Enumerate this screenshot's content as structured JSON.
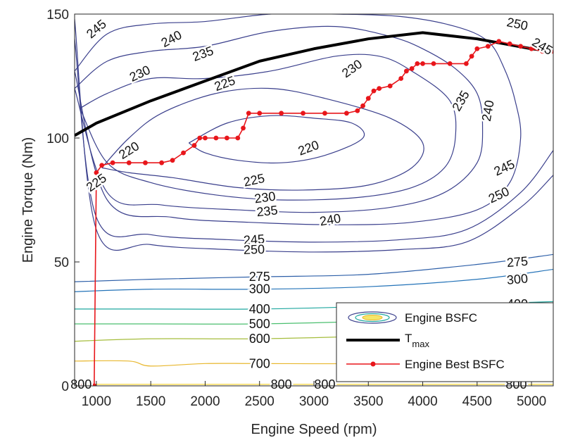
{
  "chart_data": {
    "type": "line",
    "title": "",
    "xlabel": "Engine Speed (rpm)",
    "ylabel": "Engine Torque (Nm)",
    "xlim": [
      800,
      5200
    ],
    "ylim": [
      0,
      150
    ],
    "xticks": [
      1000,
      1500,
      2000,
      2500,
      3000,
      3500,
      4000,
      4500,
      5000
    ],
    "yticks": [
      0,
      50,
      100,
      150
    ],
    "legend": {
      "placement": "bottom-right",
      "entries": [
        "Engine BSFC",
        "T",
        "Engine Best BSFC"
      ],
      "tmax_subscript": "max"
    },
    "series": [
      {
        "name": "T_max",
        "color": "#000000",
        "x": [
          800,
          1000,
          1500,
          2000,
          2500,
          3000,
          3500,
          4000,
          4500,
          5000,
          5200
        ],
        "y": [
          101,
          106,
          115,
          123,
          131,
          136,
          140,
          142.5,
          140,
          136,
          135
        ]
      },
      {
        "name": "Engine Best BSFC",
        "color": "#e8161b",
        "x": [
          850,
          950,
          980,
          1000,
          1050,
          1150,
          1300,
          1450,
          1600,
          1700,
          1800,
          1900,
          1950,
          2000,
          2100,
          2200,
          2300,
          2350,
          2400,
          2500,
          2700,
          2900,
          3100,
          3300,
          3400,
          3450,
          3500,
          3550,
          3600,
          3700,
          3800,
          3850,
          3900,
          3950,
          4000,
          4100,
          4250,
          4400,
          4450,
          4500,
          4600,
          4700,
          4800,
          4900,
          5000,
          5100,
          5200
        ],
        "y": [
          0,
          0,
          0,
          86,
          89,
          90,
          90,
          90,
          90,
          91,
          94,
          97,
          100,
          100,
          100,
          100,
          100,
          104,
          110,
          110,
          110,
          110,
          110,
          110,
          111,
          113,
          116,
          119,
          120,
          121,
          124,
          127,
          128,
          130,
          130,
          130,
          130,
          130,
          133,
          136,
          137,
          139,
          138,
          137,
          136,
          135,
          135
        ]
      }
    ],
    "contours": [
      {
        "level": 220,
        "label": "220",
        "color": "#3a3f8c",
        "x": [
          1850,
          2000,
          2300,
          2700,
          3100,
          3450,
          3350,
          3000,
          2600,
          2200,
          1850
        ],
        "y": [
          98,
          94,
          91,
          90,
          93,
          100,
          106,
          108,
          109,
          106,
          98
        ]
      },
      {
        "level": 225,
        "label": "225",
        "color": "#3a3f8c",
        "x": [
          1050,
          1300,
          1700,
          2300,
          2900,
          3500,
          3900,
          4000,
          3700,
          3100,
          2600,
          2100,
          1600,
          1300,
          1050
        ],
        "y": [
          88,
          86,
          84,
          80,
          79,
          81,
          88,
          98,
          108,
          116,
          120,
          118,
          110,
          100,
          88
        ]
      },
      {
        "level": 230,
        "label": "230",
        "color": "#3a3f8c",
        "x": [
          850,
          1100,
          1500,
          2100,
          2700,
          3400,
          3900,
          4200,
          4300,
          4250,
          3900,
          3600,
          3200,
          2600,
          2000,
          1500,
          1100,
          850
        ],
        "y": [
          112,
          90,
          82,
          77,
          75,
          76,
          80,
          88,
          100,
          115,
          127,
          133,
          133,
          127,
          124,
          124,
          118,
          112
        ]
      },
      {
        "level": 235,
        "label": "235",
        "color": "#3a3f8c",
        "x": [
          800,
          1100,
          1600,
          2300,
          3000,
          3700,
          4200,
          4500,
          4550,
          4500,
          4300,
          4000,
          3700,
          3200,
          2600,
          2000,
          1500,
          1100,
          800
        ],
        "y": [
          120,
          78,
          73,
          71,
          70,
          72,
          78,
          90,
          105,
          118,
          128,
          136,
          141,
          145,
          143,
          137,
          135,
          131,
          120
        ]
      },
      {
        "level": 240,
        "label": "240",
        "color": "#3a3f8c",
        "x": [
          800,
          1100,
          1700,
          2400,
          3200,
          3900,
          4500,
          4800,
          4900,
          4850,
          4750,
          4600,
          4300,
          3800,
          3200,
          2600,
          2000,
          1500,
          1100,
          800
        ],
        "y": [
          127,
          75,
          68,
          66,
          65,
          66,
          71,
          82,
          100,
          115,
          128,
          139,
          145,
          149,
          150,
          150,
          147,
          146,
          142,
          127
        ]
      },
      {
        "level": 245,
        "label": "245",
        "color": "#3a3f8c",
        "x": [
          800,
          1000,
          1500,
          2200,
          3000,
          3800,
          4400,
          4900,
          5200
        ],
        "y": [
          140,
          68,
          61,
          59,
          58,
          59,
          63,
          78,
          95
        ]
      },
      {
        "level": 250,
        "label": "250",
        "color": "#3a3f8c",
        "x": [
          800,
          1000,
          1500,
          2200,
          3000,
          3800,
          4400,
          4900,
          5200
        ],
        "y": [
          148,
          63,
          57,
          55,
          54,
          55,
          58,
          72,
          85
        ]
      },
      {
        "level": 275,
        "label": "275",
        "color": "#2d5fa8",
        "x": [
          800,
          1500,
          2500,
          3500,
          4500,
          5200
        ],
        "y": [
          42,
          43,
          44,
          45,
          49,
          53
        ]
      },
      {
        "level": 300,
        "label": "300",
        "color": "#2473b8",
        "x": [
          800,
          1500,
          2500,
          3500,
          4500,
          5200
        ],
        "y": [
          38,
          39,
          39,
          40,
          43,
          47
        ]
      },
      {
        "level": 400,
        "label": "400",
        "color": "#1ea79f",
        "x": [
          800,
          1500,
          2500,
          3500,
          4500,
          5200
        ],
        "y": [
          31,
          31,
          31,
          32,
          33,
          34
        ]
      },
      {
        "level": 500,
        "label": "500",
        "color": "#4bbf6f",
        "x": [
          800,
          1500,
          2500,
          3500,
          4500,
          5200
        ],
        "y": [
          25,
          25,
          25,
          26,
          27,
          28
        ]
      },
      {
        "level": 600,
        "label": "600",
        "color": "#a5bd3c",
        "x": [
          800,
          1500,
          2500,
          3500,
          4500,
          5200
        ],
        "y": [
          18,
          19,
          19,
          20,
          21,
          22
        ]
      },
      {
        "level": 700,
        "label": "700",
        "color": "#e8b72d",
        "x": [
          800,
          1300,
          1500,
          2000,
          2500,
          3500,
          4500,
          5200
        ],
        "y": [
          10,
          10,
          8,
          9,
          9,
          9,
          10,
          10
        ]
      },
      {
        "level": 800,
        "label": "800",
        "color": "#f4d43a",
        "x": [
          800,
          5200
        ],
        "y": [
          0.6,
          0.6
        ]
      }
    ],
    "contour_labels": [
      {
        "text": "245",
        "x": 1000,
        "y": 144,
        "rot": -40
      },
      {
        "text": "240",
        "x": 1690,
        "y": 140,
        "rot": -28
      },
      {
        "text": "235",
        "x": 1980,
        "y": 134,
        "rot": -20
      },
      {
        "text": "230",
        "x": 1400,
        "y": 126,
        "rot": -25
      },
      {
        "text": "225",
        "x": 2180,
        "y": 122,
        "rot": -20
      },
      {
        "text": "220",
        "x": 1300,
        "y": 95,
        "rot": -32
      },
      {
        "text": "225",
        "x": 1000,
        "y": 82,
        "rot": -35
      },
      {
        "text": "220",
        "x": 2950,
        "y": 96,
        "rot": -20
      },
      {
        "text": "225",
        "x": 2450,
        "y": 83,
        "rot": -12
      },
      {
        "text": "230",
        "x": 2550,
        "y": 76,
        "rot": -8
      },
      {
        "text": "235",
        "x": 2570,
        "y": 70.5,
        "rot": -6
      },
      {
        "text": "240",
        "x": 3150,
        "y": 67,
        "rot": -10
      },
      {
        "text": "245",
        "x": 2450,
        "y": 59,
        "rot": -4
      },
      {
        "text": "250",
        "x": 2450,
        "y": 55,
        "rot": -2
      },
      {
        "text": "230",
        "x": 3350,
        "y": 128,
        "rot": -35
      },
      {
        "text": "235",
        "x": 4350,
        "y": 115,
        "rot": -60
      },
      {
        "text": "240",
        "x": 4600,
        "y": 111,
        "rot": -80
      },
      {
        "text": "245",
        "x": 4750,
        "y": 88,
        "rot": -25
      },
      {
        "text": "250",
        "x": 4700,
        "y": 77,
        "rot": -25
      },
      {
        "text": "250",
        "x": 4870,
        "y": 146,
        "rot": 12
      },
      {
        "text": "245",
        "x": 5100,
        "y": 137,
        "rot": 30
      },
      {
        "text": "275",
        "x": 2500,
        "y": 44,
        "rot": 0
      },
      {
        "text": "300",
        "x": 2500,
        "y": 39,
        "rot": 0
      },
      {
        "text": "400",
        "x": 2500,
        "y": 31,
        "rot": 0
      },
      {
        "text": "500",
        "x": 2500,
        "y": 25,
        "rot": 0
      },
      {
        "text": "600",
        "x": 2500,
        "y": 19,
        "rot": 0
      },
      {
        "text": "700",
        "x": 2500,
        "y": 9,
        "rot": 0
      },
      {
        "text": "275",
        "x": 4870,
        "y": 50,
        "rot": -5
      },
      {
        "text": "300",
        "x": 4870,
        "y": 43,
        "rot": -5
      },
      {
        "text": "400",
        "x": 4870,
        "y": 33,
        "rot": 0
      },
      {
        "text": "800",
        "x": 860,
        "y": 0.6,
        "rot": 0
      },
      {
        "text": "800",
        "x": 2700,
        "y": 0.6,
        "rot": 0
      },
      {
        "text": "800",
        "x": 3100,
        "y": 0.6,
        "rot": 0
      },
      {
        "text": "800",
        "x": 4860,
        "y": 0.6,
        "rot": 0
      }
    ]
  }
}
